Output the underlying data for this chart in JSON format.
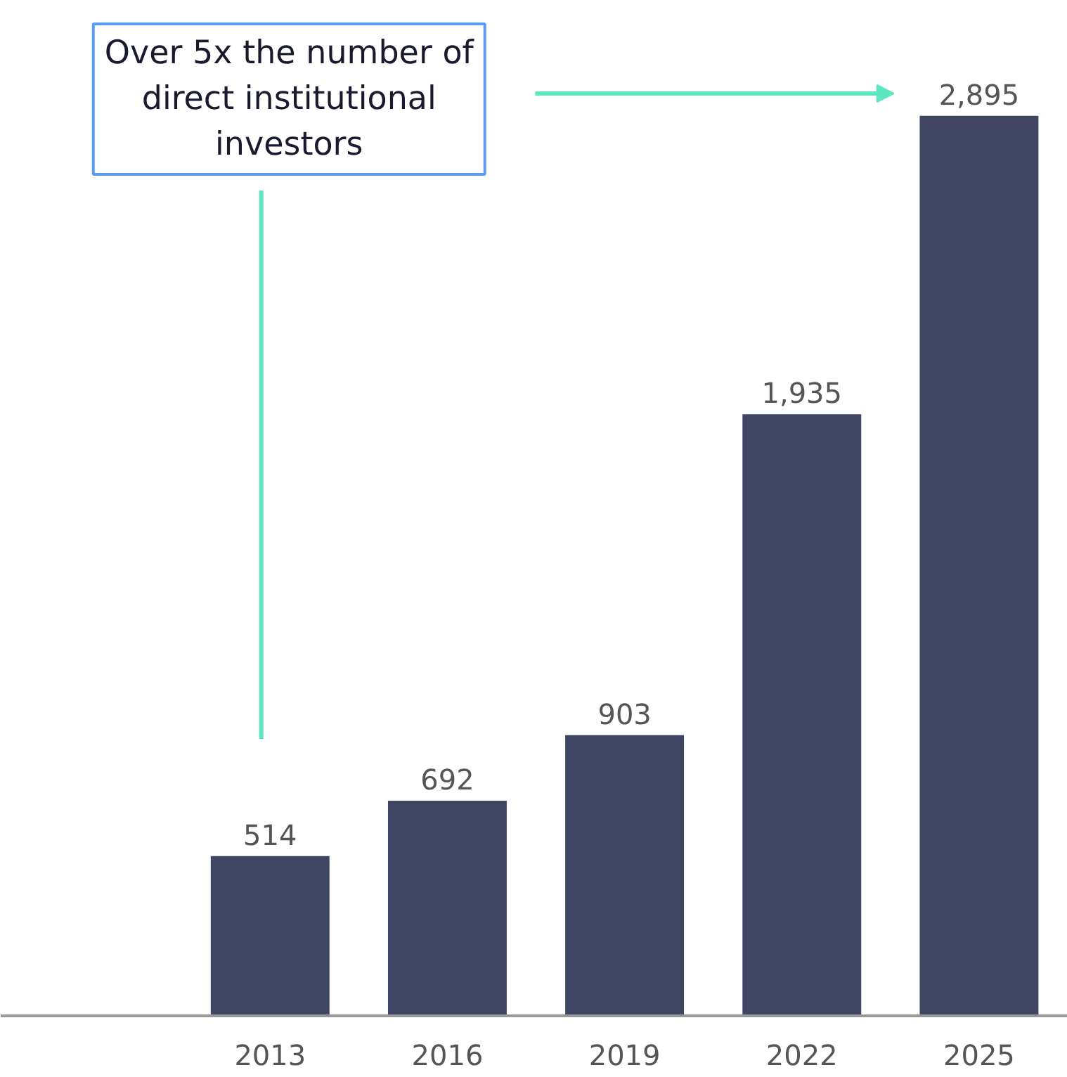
{
  "chart_data": {
    "type": "bar",
    "categories": [
      "2013",
      "2016",
      "2019",
      "2022",
      "2025"
    ],
    "values": [
      514,
      692,
      903,
      1935,
      2895
    ],
    "value_labels": [
      "514",
      "692",
      "903",
      "1,935",
      "2,895"
    ],
    "color": "#3f4664",
    "grid": false,
    "tick_labels": "x",
    "annotations": [
      "Over 5x the number of direct institutional investors"
    ]
  }
}
